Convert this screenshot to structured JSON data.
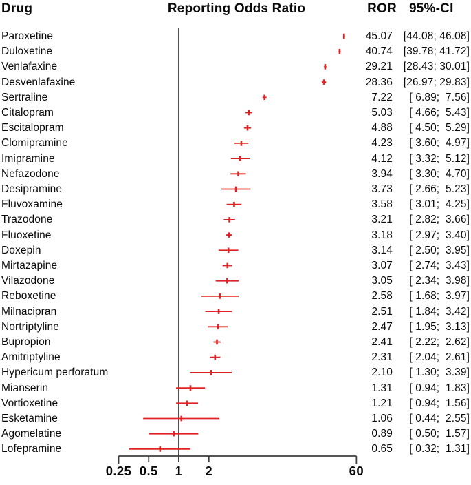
{
  "headers": {
    "drug": "Drug",
    "ror": "ROR",
    "ci": "95%-CI"
  },
  "colors": {
    "marker_red": "#e02222",
    "line_gray": "#3e3e3e",
    "text": "#0a0a0a",
    "background": "#ffffff"
  },
  "chart_data": {
    "type": "scatter",
    "variant": "forest-plot",
    "title": "Reporting Odds Ratio",
    "x_scale": "log",
    "x_range": [
      0.25,
      60
    ],
    "x_ticks": [
      0.25,
      0.5,
      1,
      2,
      60
    ],
    "x_tick_labels": [
      "0.25",
      "0.5",
      "1",
      "2",
      "60"
    ],
    "reference_line_x": 1,
    "grid": false,
    "legend": false,
    "rows": [
      {
        "drug": "Paroxetine",
        "ror": 45.07,
        "ci_low": 44.08,
        "ci_high": 46.08
      },
      {
        "drug": "Duloxetine",
        "ror": 40.74,
        "ci_low": 39.78,
        "ci_high": 41.72
      },
      {
        "drug": "Venlafaxine",
        "ror": 29.21,
        "ci_low": 28.43,
        "ci_high": 30.01
      },
      {
        "drug": "Desvenlafaxine",
        "ror": 28.36,
        "ci_low": 26.97,
        "ci_high": 29.83
      },
      {
        "drug": "Sertraline",
        "ror": 7.22,
        "ci_low": 6.89,
        "ci_high": 7.56
      },
      {
        "drug": "Citalopram",
        "ror": 5.03,
        "ci_low": 4.66,
        "ci_high": 5.43
      },
      {
        "drug": "Escitalopram",
        "ror": 4.88,
        "ci_low": 4.5,
        "ci_high": 5.29
      },
      {
        "drug": "Clomipramine",
        "ror": 4.23,
        "ci_low": 3.6,
        "ci_high": 4.97
      },
      {
        "drug": "Imipramine",
        "ror": 4.12,
        "ci_low": 3.32,
        "ci_high": 5.12
      },
      {
        "drug": "Nefazodone",
        "ror": 3.94,
        "ci_low": 3.3,
        "ci_high": 4.7
      },
      {
        "drug": "Desipramine",
        "ror": 3.73,
        "ci_low": 2.66,
        "ci_high": 5.23
      },
      {
        "drug": "Fluvoxamine",
        "ror": 3.58,
        "ci_low": 3.01,
        "ci_high": 4.25
      },
      {
        "drug": "Trazodone",
        "ror": 3.21,
        "ci_low": 2.82,
        "ci_high": 3.66
      },
      {
        "drug": "Fluoxetine",
        "ror": 3.18,
        "ci_low": 2.97,
        "ci_high": 3.4
      },
      {
        "drug": "Doxepin",
        "ror": 3.14,
        "ci_low": 2.5,
        "ci_high": 3.95
      },
      {
        "drug": "Mirtazapine",
        "ror": 3.07,
        "ci_low": 2.74,
        "ci_high": 3.43
      },
      {
        "drug": "Vilazodone",
        "ror": 3.05,
        "ci_low": 2.34,
        "ci_high": 3.98
      },
      {
        "drug": "Reboxetine",
        "ror": 2.58,
        "ci_low": 1.68,
        "ci_high": 3.97
      },
      {
        "drug": "Milnacipran",
        "ror": 2.51,
        "ci_low": 1.84,
        "ci_high": 3.42
      },
      {
        "drug": "Nortriptyline",
        "ror": 2.47,
        "ci_low": 1.95,
        "ci_high": 3.13
      },
      {
        "drug": "Bupropion",
        "ror": 2.41,
        "ci_low": 2.22,
        "ci_high": 2.62
      },
      {
        "drug": "Amitriptyline",
        "ror": 2.31,
        "ci_low": 2.04,
        "ci_high": 2.61
      },
      {
        "drug": "Hypericum perforatum",
        "ror": 2.1,
        "ci_low": 1.3,
        "ci_high": 3.39
      },
      {
        "drug": "Mianserin",
        "ror": 1.31,
        "ci_low": 0.94,
        "ci_high": 1.83
      },
      {
        "drug": "Vortioxetine",
        "ror": 1.21,
        "ci_low": 0.94,
        "ci_high": 1.56
      },
      {
        "drug": "Esketamine",
        "ror": 1.06,
        "ci_low": 0.44,
        "ci_high": 2.55
      },
      {
        "drug": "Agomelatine",
        "ror": 0.89,
        "ci_low": 0.5,
        "ci_high": 1.57
      },
      {
        "drug": "Lofepramine",
        "ror": 0.65,
        "ci_low": 0.32,
        "ci_high": 1.31
      }
    ]
  }
}
